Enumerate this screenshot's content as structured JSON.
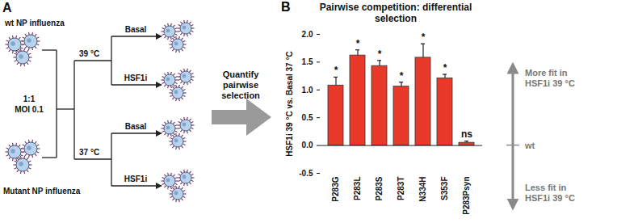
{
  "chart_data": {
    "type": "bar",
    "panel_label": "B",
    "title": "Pairwise competition: differential selection",
    "y_label": "HSF1i 39 °C vs. Basal 37 °C",
    "categories": [
      "P283G",
      "P283L",
      "P283S",
      "P283T",
      "N334H",
      "S353F",
      "P283Psyn"
    ],
    "values": [
      1.08,
      1.62,
      1.43,
      1.06,
      1.58,
      1.21,
      0.05
    ],
    "errors": [
      0.15,
      0.1,
      0.1,
      0.08,
      0.25,
      0.07,
      0.03
    ],
    "significance": [
      "*",
      "*",
      "*",
      "*",
      "*",
      "*",
      "ns"
    ],
    "color": "#e8392a",
    "ylim": [
      -0.5,
      2
    ],
    "yticks": [
      {
        "value": -0.5,
        "label": "-0.5"
      },
      {
        "value": 0,
        "label": "0.0"
      },
      {
        "value": 0.5,
        "label": "0.5"
      },
      {
        "value": 1,
        "label": "1.0"
      },
      {
        "value": 1.5,
        "label": "1.5"
      },
      {
        "value": 2,
        "label": "2.0"
      }
    ],
    "annotations": {
      "up": [
        "More fit in",
        "HSF1i 39 °C"
      ],
      "baseline": "wt",
      "down": [
        "Less fit in",
        "HSF1i 39 °C"
      ]
    }
  },
  "diagram": {
    "panel_label": "A",
    "wt_label": "wt NP influenza",
    "mutant_label": "Mutant NP influenza",
    "mix_label": [
      "1:1",
      "MOI 0.1"
    ],
    "temperatures": [
      "39 °C",
      "37 °C"
    ],
    "treatments": [
      "Basal",
      "HSF1i"
    ],
    "result_label": "Quantify pairwise selection"
  }
}
